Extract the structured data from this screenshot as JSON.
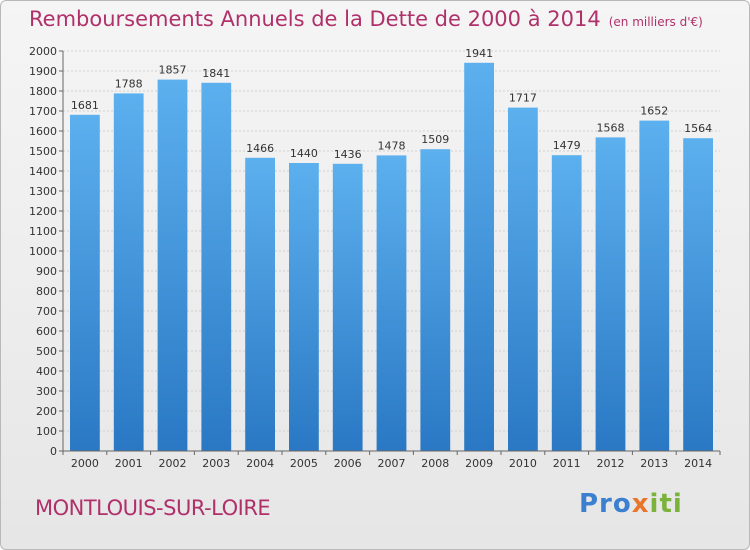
{
  "title": "Remboursements Annuels de la Dette de 2000 à 2014",
  "subtitle": "(en milliers d'€)",
  "city": "MONTLOUIS-SUR-LOIRE",
  "logo": {
    "part1": "Pro",
    "part2": "x",
    "part3": "iti"
  },
  "colors": {
    "bar": "#3a8fd8",
    "bar_light": "#5cb0ee",
    "title": "#b0306a"
  },
  "chart_data": {
    "type": "bar",
    "title": "Remboursements Annuels de la Dette de 2000 à 2014",
    "subtitle": "(en milliers d'€)",
    "categories": [
      "2000",
      "2001",
      "2002",
      "2003",
      "2004",
      "2005",
      "2006",
      "2007",
      "2008",
      "2009",
      "2010",
      "2011",
      "2012",
      "2013",
      "2014"
    ],
    "values": [
      1681,
      1788,
      1857,
      1841,
      1466,
      1440,
      1436,
      1478,
      1509,
      1941,
      1717,
      1479,
      1568,
      1652,
      1564
    ],
    "ylim": [
      0,
      2000
    ],
    "ytick_step": 100,
    "grid": true,
    "xlabel": "",
    "ylabel": ""
  }
}
